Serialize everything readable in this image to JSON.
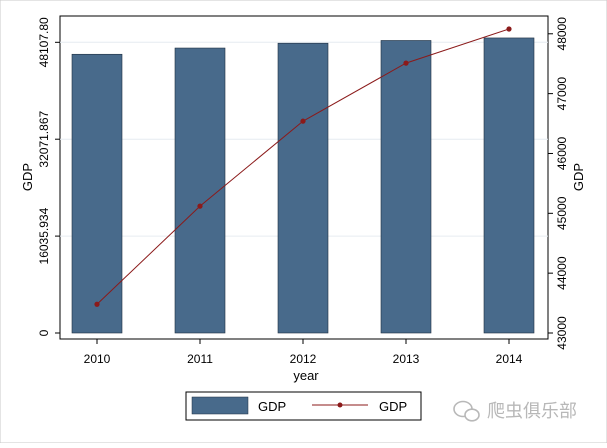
{
  "chart_data": {
    "type": "bar+line",
    "categories": [
      "2010",
      "2011",
      "2012",
      "2013",
      "2014"
    ],
    "xlabel": "year",
    "series": [
      {
        "name": "GDP",
        "kind": "bar",
        "axis": "left",
        "values": [
          46130,
          47160,
          47960,
          48410,
          48830
        ],
        "color": "#486a8b"
      },
      {
        "name": "GDP",
        "kind": "line",
        "axis": "right",
        "values": [
          43480,
          45120,
          46540,
          47510,
          48080
        ],
        "color": "#8b1a1a"
      }
    ],
    "y_left": {
      "label": "GDP",
      "ticks": [
        0,
        16035.934,
        32071.867,
        48107.8
      ],
      "tick_labels": [
        "0",
        "16035.934",
        "32071.867",
        "48107.80"
      ],
      "range": [
        0,
        50310
      ]
    },
    "y_right": {
      "label": "GDP",
      "ticks": [
        43000,
        44000,
        45000,
        46000,
        47000,
        48000
      ],
      "tick_labels": [
        "43000",
        "44000",
        "45000",
        "46000",
        "47000",
        "48000"
      ],
      "range": [
        43000,
        48080
      ]
    },
    "grid": true,
    "legend": {
      "position": "bottom",
      "entries": [
        "GDP",
        "GDP"
      ]
    }
  },
  "watermark": {
    "text": "爬虫俱乐部",
    "icon": "wechat-icon"
  },
  "colors": {
    "background": "#ffffff",
    "plot_background": "#ffffff",
    "grid": "#e6ecf1"
  }
}
